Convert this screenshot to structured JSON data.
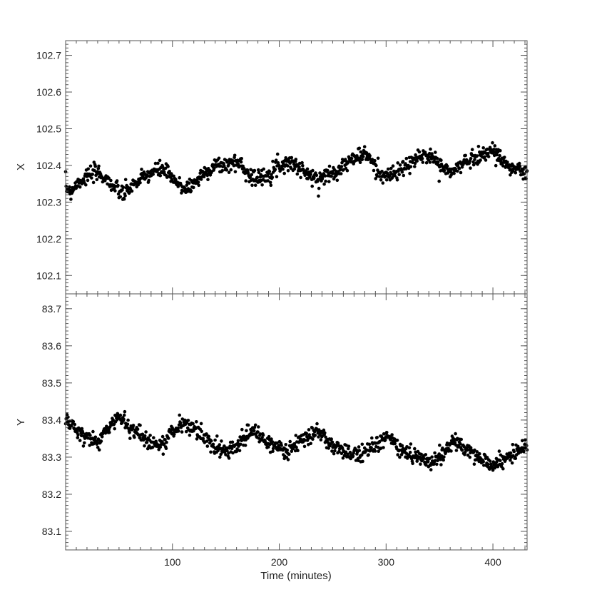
{
  "chart_data": [
    {
      "type": "scatter",
      "panel": "top",
      "title": "",
      "xlabel": "",
      "ylabel": "X",
      "xlim": [
        0,
        432
      ],
      "ylim": [
        102.05,
        102.74
      ],
      "yticks": [
        102.1,
        102.2,
        102.3,
        102.4,
        102.5,
        102.6,
        102.7
      ],
      "ytick_labels": [
        "102.1",
        "102.2",
        "102.3",
        "102.4",
        "102.5",
        "102.6",
        "102.7"
      ],
      "xticks": [
        100,
        200,
        300,
        400
      ],
      "xtick_labels": [],
      "grid": false,
      "point_color": "#000000",
      "series": [
        {
          "name": "",
          "x": [
            0,
            5,
            10,
            20,
            30,
            40,
            45,
            50,
            55,
            60,
            70,
            80,
            90,
            95,
            100,
            110,
            115,
            120,
            130,
            140,
            150,
            160,
            165,
            170,
            180,
            185,
            190,
            200,
            210,
            220,
            225,
            235,
            240,
            250,
            260,
            270,
            280,
            285,
            290,
            300,
            310,
            320,
            330,
            340,
            345,
            350,
            360,
            370,
            380,
            390,
            400,
            405,
            410,
            420,
            430
          ],
          "y": [
            102.34,
            102.33,
            102.35,
            102.37,
            102.38,
            102.36,
            102.34,
            102.33,
            102.32,
            102.34,
            102.36,
            102.38,
            102.39,
            102.38,
            102.36,
            102.34,
            102.34,
            102.35,
            102.38,
            102.4,
            102.4,
            102.41,
            102.4,
            102.38,
            102.36,
            102.37,
            102.38,
            102.4,
            102.41,
            102.39,
            102.38,
            102.36,
            102.37,
            102.38,
            102.4,
            102.42,
            102.43,
            102.42,
            102.39,
            102.37,
            102.38,
            102.4,
            102.42,
            102.43,
            102.42,
            102.4,
            102.38,
            102.4,
            102.42,
            102.43,
            102.44,
            102.43,
            102.41,
            102.39,
            102.38
          ]
        }
      ]
    },
    {
      "type": "scatter",
      "panel": "bottom",
      "title": "",
      "xlabel": "Time (minutes)",
      "ylabel": "Y",
      "xlim": [
        0,
        432
      ],
      "ylim": [
        83.05,
        83.74
      ],
      "yticks": [
        83.1,
        83.2,
        83.3,
        83.4,
        83.5,
        83.6,
        83.7
      ],
      "ytick_labels": [
        "83.1",
        "83.2",
        "83.3",
        "83.4",
        "83.5",
        "83.6",
        "83.7"
      ],
      "xticks": [
        100,
        200,
        300,
        400
      ],
      "xtick_labels": [
        "100",
        "200",
        "300",
        "400"
      ],
      "grid": false,
      "point_color": "#000000",
      "series": [
        {
          "name": "",
          "x": [
            0,
            5,
            10,
            20,
            30,
            40,
            50,
            55,
            60,
            70,
            80,
            90,
            100,
            110,
            120,
            130,
            140,
            150,
            160,
            170,
            175,
            180,
            190,
            200,
            210,
            220,
            230,
            235,
            240,
            250,
            260,
            270,
            280,
            290,
            300,
            305,
            310,
            320,
            330,
            340,
            350,
            360,
            365,
            370,
            380,
            390,
            400,
            410,
            420,
            430
          ],
          "y": [
            83.4,
            83.39,
            83.37,
            83.35,
            83.34,
            83.38,
            83.41,
            83.4,
            83.38,
            83.36,
            83.34,
            83.33,
            83.37,
            83.39,
            83.38,
            83.35,
            83.33,
            83.32,
            83.33,
            83.36,
            83.37,
            83.36,
            83.34,
            83.32,
            83.32,
            83.34,
            83.36,
            83.37,
            83.36,
            83.33,
            83.31,
            83.31,
            83.32,
            83.33,
            83.35,
            83.35,
            83.33,
            83.31,
            83.3,
            83.29,
            83.3,
            83.33,
            83.34,
            83.33,
            83.31,
            83.29,
            83.28,
            83.29,
            83.31,
            83.33
          ]
        }
      ]
    }
  ]
}
